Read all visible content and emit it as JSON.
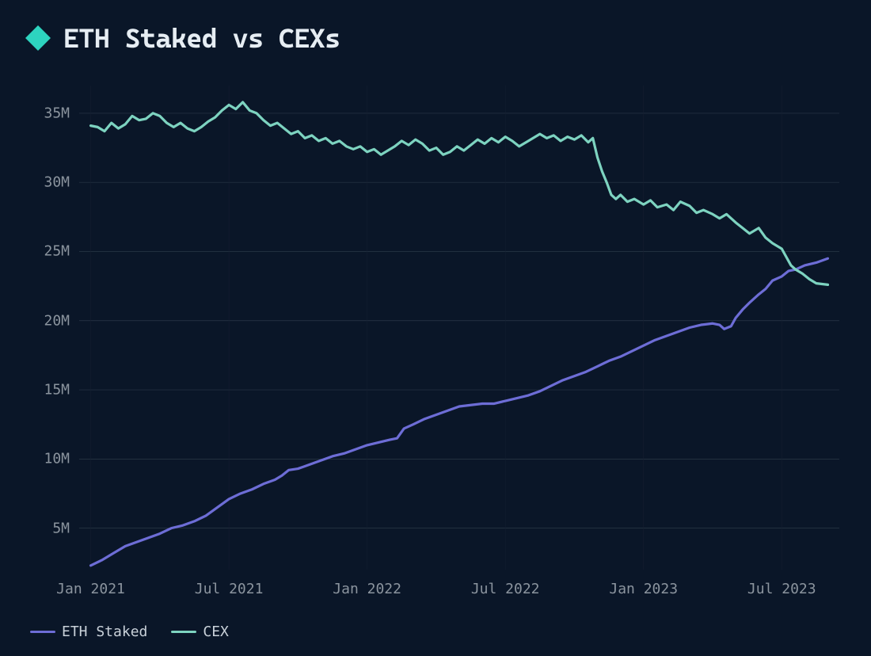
{
  "title": "ETH Staked vs CEXs",
  "background_color": "#0a1628",
  "text_color": "#c9d1d9",
  "axis_label_color": "#8b949e",
  "grid_color": "#2a3847",
  "grid_minor_color": "#161f31",
  "title_fontsize": 34,
  "axis_fontsize": 18,
  "icon_color": "#2dd4bf",
  "chart": {
    "type": "line",
    "line_width": 3.2,
    "ylim": [
      2,
      37
    ],
    "y_ticks": [
      5,
      10,
      15,
      20,
      25,
      30,
      35
    ],
    "y_tick_labels": [
      "5M",
      "10M",
      "15M",
      "20M",
      "25M",
      "30M",
      "35M"
    ],
    "x_ticks": [
      0,
      6,
      12,
      18,
      24,
      30
    ],
    "x_tick_labels": [
      "Jan 2021",
      "Jul 2021",
      "Jan 2022",
      "Jul 2022",
      "Jan 2023",
      "Jul 2023"
    ],
    "x_range": [
      -0.5,
      32.5
    ],
    "series": [
      {
        "name": "ETH Staked",
        "color": "#6d6dd6",
        "data": [
          [
            0,
            2.3
          ],
          [
            0.5,
            2.7
          ],
          [
            1,
            3.2
          ],
          [
            1.5,
            3.7
          ],
          [
            2,
            4.0
          ],
          [
            2.5,
            4.3
          ],
          [
            3,
            4.6
          ],
          [
            3.5,
            5.0
          ],
          [
            4,
            5.2
          ],
          [
            4.5,
            5.5
          ],
          [
            5,
            5.9
          ],
          [
            5.5,
            6.5
          ],
          [
            6,
            7.1
          ],
          [
            6.5,
            7.5
          ],
          [
            7,
            7.8
          ],
          [
            7.5,
            8.2
          ],
          [
            8,
            8.5
          ],
          [
            8.3,
            8.8
          ],
          [
            8.6,
            9.2
          ],
          [
            9,
            9.3
          ],
          [
            9.5,
            9.6
          ],
          [
            10,
            9.9
          ],
          [
            10.5,
            10.2
          ],
          [
            11,
            10.4
          ],
          [
            11.5,
            10.7
          ],
          [
            12,
            11.0
          ],
          [
            12.5,
            11.2
          ],
          [
            13,
            11.4
          ],
          [
            13.3,
            11.5
          ],
          [
            13.6,
            12.2
          ],
          [
            14,
            12.5
          ],
          [
            14.5,
            12.9
          ],
          [
            15,
            13.2
          ],
          [
            15.5,
            13.5
          ],
          [
            16,
            13.8
          ],
          [
            16.5,
            13.9
          ],
          [
            17,
            14.0
          ],
          [
            17.5,
            14.0
          ],
          [
            18,
            14.2
          ],
          [
            18.5,
            14.4
          ],
          [
            19,
            14.6
          ],
          [
            19.5,
            14.9
          ],
          [
            20,
            15.3
          ],
          [
            20.5,
            15.7
          ],
          [
            21,
            16.0
          ],
          [
            21.5,
            16.3
          ],
          [
            22,
            16.7
          ],
          [
            22.5,
            17.1
          ],
          [
            23,
            17.4
          ],
          [
            23.5,
            17.8
          ],
          [
            24,
            18.2
          ],
          [
            24.5,
            18.6
          ],
          [
            25,
            18.9
          ],
          [
            25.5,
            19.2
          ],
          [
            26,
            19.5
          ],
          [
            26.5,
            19.7
          ],
          [
            27,
            19.8
          ],
          [
            27.3,
            19.7
          ],
          [
            27.5,
            19.4
          ],
          [
            27.8,
            19.6
          ],
          [
            28,
            20.2
          ],
          [
            28.3,
            20.8
          ],
          [
            28.6,
            21.3
          ],
          [
            29,
            21.9
          ],
          [
            29.3,
            22.3
          ],
          [
            29.6,
            22.9
          ],
          [
            30,
            23.2
          ],
          [
            30.3,
            23.6
          ],
          [
            30.6,
            23.7
          ],
          [
            31,
            24.0
          ],
          [
            31.5,
            24.2
          ],
          [
            32,
            24.5
          ]
        ]
      },
      {
        "name": "CEX",
        "color": "#7dd3c0",
        "data": [
          [
            0,
            34.1
          ],
          [
            0.3,
            34.0
          ],
          [
            0.6,
            33.7
          ],
          [
            0.9,
            34.3
          ],
          [
            1.2,
            33.9
          ],
          [
            1.5,
            34.2
          ],
          [
            1.8,
            34.8
          ],
          [
            2.1,
            34.5
          ],
          [
            2.4,
            34.6
          ],
          [
            2.7,
            35.0
          ],
          [
            3.0,
            34.8
          ],
          [
            3.3,
            34.3
          ],
          [
            3.6,
            34.0
          ],
          [
            3.9,
            34.3
          ],
          [
            4.2,
            33.9
          ],
          [
            4.5,
            33.7
          ],
          [
            4.8,
            34.0
          ],
          [
            5.1,
            34.4
          ],
          [
            5.4,
            34.7
          ],
          [
            5.7,
            35.2
          ],
          [
            6.0,
            35.6
          ],
          [
            6.3,
            35.3
          ],
          [
            6.6,
            35.8
          ],
          [
            6.9,
            35.2
          ],
          [
            7.2,
            35.0
          ],
          [
            7.5,
            34.5
          ],
          [
            7.8,
            34.1
          ],
          [
            8.1,
            34.3
          ],
          [
            8.4,
            33.9
          ],
          [
            8.7,
            33.5
          ],
          [
            9.0,
            33.7
          ],
          [
            9.3,
            33.2
          ],
          [
            9.6,
            33.4
          ],
          [
            9.9,
            33.0
          ],
          [
            10.2,
            33.2
          ],
          [
            10.5,
            32.8
          ],
          [
            10.8,
            33.0
          ],
          [
            11.1,
            32.6
          ],
          [
            11.4,
            32.4
          ],
          [
            11.7,
            32.6
          ],
          [
            12.0,
            32.2
          ],
          [
            12.3,
            32.4
          ],
          [
            12.6,
            32.0
          ],
          [
            12.9,
            32.3
          ],
          [
            13.2,
            32.6
          ],
          [
            13.5,
            33.0
          ],
          [
            13.8,
            32.7
          ],
          [
            14.1,
            33.1
          ],
          [
            14.4,
            32.8
          ],
          [
            14.7,
            32.3
          ],
          [
            15.0,
            32.5
          ],
          [
            15.3,
            32.0
          ],
          [
            15.6,
            32.2
          ],
          [
            15.9,
            32.6
          ],
          [
            16.2,
            32.3
          ],
          [
            16.5,
            32.7
          ],
          [
            16.8,
            33.1
          ],
          [
            17.1,
            32.8
          ],
          [
            17.4,
            33.2
          ],
          [
            17.7,
            32.9
          ],
          [
            18.0,
            33.3
          ],
          [
            18.3,
            33.0
          ],
          [
            18.6,
            32.6
          ],
          [
            18.9,
            32.9
          ],
          [
            19.2,
            33.2
          ],
          [
            19.5,
            33.5
          ],
          [
            19.8,
            33.2
          ],
          [
            20.1,
            33.4
          ],
          [
            20.4,
            33.0
          ],
          [
            20.7,
            33.3
          ],
          [
            21.0,
            33.1
          ],
          [
            21.3,
            33.4
          ],
          [
            21.6,
            32.9
          ],
          [
            21.8,
            33.2
          ],
          [
            22.0,
            31.8
          ],
          [
            22.2,
            30.8
          ],
          [
            22.4,
            30.0
          ],
          [
            22.6,
            29.1
          ],
          [
            22.8,
            28.8
          ],
          [
            23.0,
            29.1
          ],
          [
            23.3,
            28.6
          ],
          [
            23.6,
            28.8
          ],
          [
            24.0,
            28.4
          ],
          [
            24.3,
            28.7
          ],
          [
            24.6,
            28.2
          ],
          [
            25.0,
            28.4
          ],
          [
            25.3,
            28.0
          ],
          [
            25.6,
            28.6
          ],
          [
            26.0,
            28.3
          ],
          [
            26.3,
            27.8
          ],
          [
            26.6,
            28.0
          ],
          [
            27.0,
            27.7
          ],
          [
            27.3,
            27.4
          ],
          [
            27.6,
            27.7
          ],
          [
            28.0,
            27.1
          ],
          [
            28.3,
            26.7
          ],
          [
            28.6,
            26.3
          ],
          [
            29.0,
            26.7
          ],
          [
            29.3,
            26.0
          ],
          [
            29.6,
            25.6
          ],
          [
            30.0,
            25.2
          ],
          [
            30.2,
            24.6
          ],
          [
            30.4,
            24.0
          ],
          [
            30.6,
            23.7
          ],
          [
            30.9,
            23.4
          ],
          [
            31.2,
            23.0
          ],
          [
            31.5,
            22.7
          ],
          [
            32.0,
            22.6
          ]
        ]
      }
    ]
  },
  "legend": {
    "items": [
      {
        "label": "ETH Staked",
        "color": "#6d6dd6"
      },
      {
        "label": "CEX",
        "color": "#7dd3c0"
      }
    ]
  }
}
